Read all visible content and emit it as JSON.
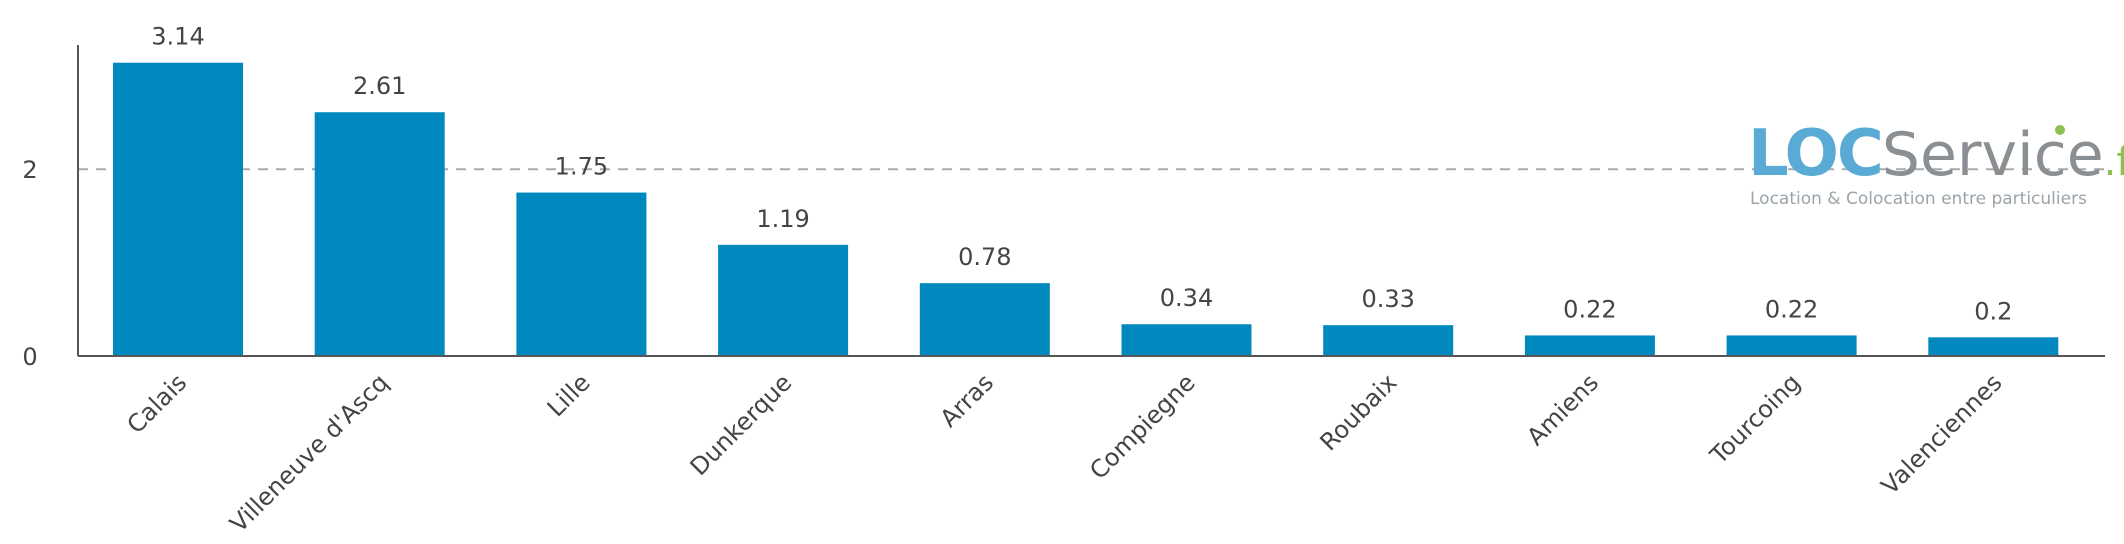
{
  "chart_data": {
    "type": "bar",
    "title": "",
    "xlabel": "",
    "ylabel": "",
    "categories": [
      "Calais",
      "Villeneuve d'Ascq",
      "Lille",
      "Dunkerque",
      "Arras",
      "Compiegne",
      "Roubaix",
      "Amiens",
      "Tourcoing",
      "Valenciennes"
    ],
    "values": [
      3.14,
      2.61,
      1.75,
      1.19,
      0.78,
      0.34,
      0.33,
      0.22,
      0.22,
      0.2
    ],
    "data_labels": [
      "3.14",
      "2.61",
      "1.75",
      "1.19",
      "0.78",
      "0.34",
      "0.33",
      "0.22",
      "0.22",
      "0.2"
    ],
    "y_ticks": [
      0,
      2
    ],
    "y_tick_labels": [
      "0",
      "2"
    ],
    "ylim": [
      0,
      3.3
    ],
    "grid": "dashed line at y=2",
    "legend": "none",
    "bar_color": "#0088bf"
  },
  "logo": {
    "brand_strong": "LOC",
    "brand_light": "Service",
    "brand_tld": ".fr",
    "tagline": "Location & Colocation entre particuliers",
    "colors": {
      "strong": "#5aaad6",
      "light": "#8a8f93",
      "tld": "#8cc152",
      "dot": "#8cc152",
      "tagline": "#9aa4aa"
    }
  }
}
